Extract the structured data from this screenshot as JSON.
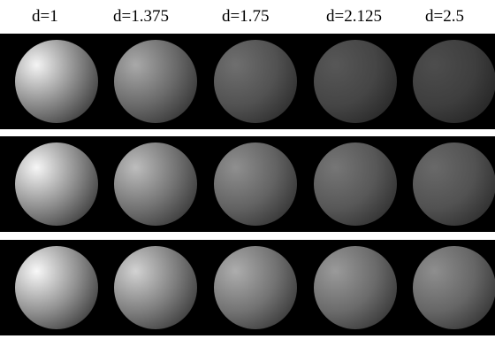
{
  "column_labels": [
    "d=1",
    "d=1.375",
    "d=1.75",
    "d=2.125",
    "d=2.5"
  ],
  "rows": [
    {
      "spheres": [
        {
          "highlight": "#f4f4f4",
          "mid": "#8a8a8a",
          "shadow": "#2b2b2b"
        },
        {
          "highlight": "#a9a9a9",
          "mid": "#6a6a6a",
          "shadow": "#2a2a2a"
        },
        {
          "highlight": "#6f6f6f",
          "mid": "#525252",
          "shadow": "#262626"
        },
        {
          "highlight": "#575757",
          "mid": "#454545",
          "shadow": "#222222"
        },
        {
          "highlight": "#4d4d4d",
          "mid": "#3e3e3e",
          "shadow": "#202020"
        }
      ]
    },
    {
      "spheres": [
        {
          "highlight": "#f6f6f6",
          "mid": "#8e8e8e",
          "shadow": "#2c2c2c"
        },
        {
          "highlight": "#bdbdbd",
          "mid": "#747474",
          "shadow": "#2c2c2c"
        },
        {
          "highlight": "#8f8f8f",
          "mid": "#636363",
          "shadow": "#2a2a2a"
        },
        {
          "highlight": "#767676",
          "mid": "#585858",
          "shadow": "#282828"
        },
        {
          "highlight": "#696969",
          "mid": "#525252",
          "shadow": "#262626"
        }
      ]
    },
    {
      "spheres": [
        {
          "highlight": "#f8f8f8",
          "mid": "#929292",
          "shadow": "#2c2c2c"
        },
        {
          "highlight": "#d2d2d2",
          "mid": "#7f7f7f",
          "shadow": "#2d2d2d"
        },
        {
          "highlight": "#adadad",
          "mid": "#737373",
          "shadow": "#2d2d2d"
        },
        {
          "highlight": "#9a9a9a",
          "mid": "#6b6b6b",
          "shadow": "#2c2c2c"
        },
        {
          "highlight": "#8e8e8e",
          "mid": "#666666",
          "shadow": "#2b2b2b"
        }
      ]
    }
  ]
}
